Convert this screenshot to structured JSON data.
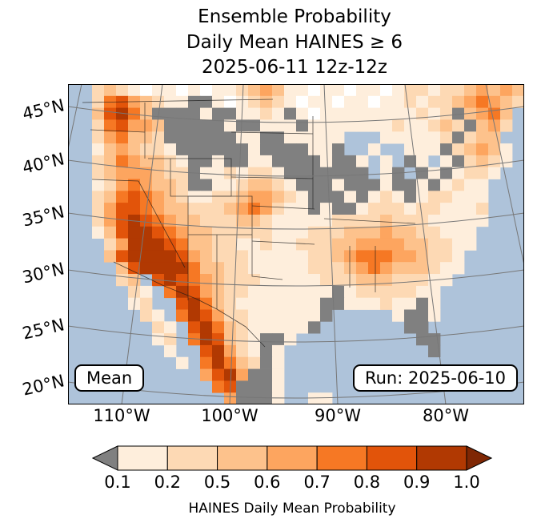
{
  "title": {
    "line1": "Ensemble Probability",
    "line2": "Daily Mean HAINES ≥ 6",
    "line3": "2025-06-11 12z-12z"
  },
  "map": {
    "lat_labels": [
      "45°N",
      "40°N",
      "35°N",
      "30°N",
      "25°N",
      "20°N"
    ],
    "lon_labels": [
      "110°W",
      "100°W",
      "90°W",
      "80°W"
    ],
    "mean_label": "Mean",
    "run_label": "Run: 2025-06-10",
    "ocean_color": "#aec3da",
    "mask_color": "#808080"
  },
  "map_grid": {
    "legend": "w=water l=land-no-signal 0..6=increasing HAINES probability g=masked-gray",
    "palette": {
      "w": "#aec3da",
      "l": "#ffffff",
      "0": "#feeedc",
      "1": "#fdd9b4",
      "2": "#fdc28c",
      "3": "#fda55f",
      "4": "#f67824",
      "5": "#e2540a",
      "6": "#b13902",
      "g": "#808080"
    },
    "rows": [
      "ww1210l00l0l00123200l00l00l01101123232",
      "ww14532100gg0l01210l00l00l001011234321",
      "ww25642gggg0gg0010g0l00000000101g2342w",
      "ww145332ggggg0gg000g0000000100121g231w",
      "ww134221gggggg00gg00000www000001g122ww",
      "ww0232110gggggg0gggg00gww0ww000g12320w",
      "ww12432210gg0gg00gggg0gg0w0wg0w0g1210w",
      "ww12333211g0010110gggggggw0gwg0g0110ww",
      "ww01343221gg0012210ggg0ggg0gg0g0100www",
      "ww124543210011233210ggg0g010g011000www",
      "ww135543221112343100g0gg01110110001www",
      "ww135654322111221000001111211100000www",
      "ww02566543221111100011122232211000wwww",
      "www1366654221100100111223333221100wwww",
      "www256666532111000001123444332110wwwww",
      "wwww25666642211000001112343222100wwwww",
      "wwww12w5654321110000011122211100wwwwww",
      "wwwww10w46532110000000g01111100wwwwwww",
      "wwwww01ww564210000000gg000100g0wwwwwww",
      "wwwwww10w465311000000gwwwww0gg0wwwwwww",
      "wwwwwww10w5642100000gwwwwwwwggwwwwwwww",
      "wwwwwww01w465210gg0wwwwwwwwwwggwwwwwww",
      "wwwwwwww0ww56310g0wwwwwwwwwwwwgwwwwwww",
      "wwwwwwwww0w46421g0wwwwwwwwwwwwwwwwwwww",
      "wwwwwwwwwww3563gg0wwwwwwwwwwwwwwwwwwww",
      "wwwwwwwwwwww45ggg0wwwwwwwwwwwwwwwwwwww",
      "wwwwwwwwwwwww3ggg0ww00wwwwwwwwwwwwwwww"
    ]
  },
  "colorbar": {
    "ticks": [
      "0.1",
      "0.2",
      "0.5",
      "0.6",
      "0.7",
      "0.8",
      "0.9",
      "1.0"
    ],
    "segment_colors": [
      "#feeedc",
      "#fdd9b4",
      "#fdc28c",
      "#fda55f",
      "#f67824",
      "#e2540a",
      "#b13902"
    ],
    "under_color": "#808080",
    "over_color": "#7f2704",
    "label": "HAINES Daily Mean Probability"
  }
}
